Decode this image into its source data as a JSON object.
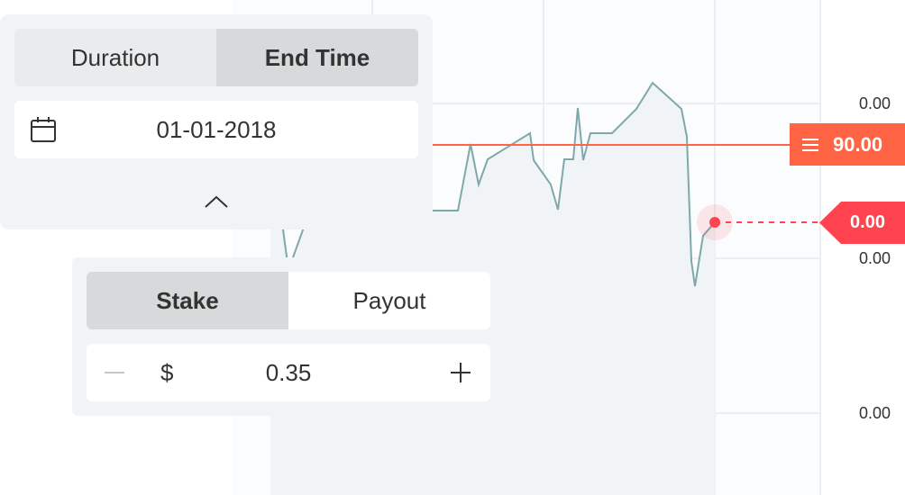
{
  "colors": {
    "barrier": "#ff6444",
    "current": "#ff444f",
    "line": "#7fa8ab",
    "area": "#f3f6f8",
    "grid": "#eceeef"
  },
  "chart": {
    "price_axis_labels": [
      "0.00",
      "0.00",
      "0.00"
    ],
    "barrier_value": "90.00",
    "current_value": "0.00"
  },
  "duration_panel": {
    "tabs": [
      {
        "label": "Duration",
        "active": false
      },
      {
        "label": "End Time",
        "active": true
      }
    ],
    "date_value": "01-01-2018",
    "calendar_icon": "calendar-icon",
    "collapse_icon": "chevron-up-icon"
  },
  "stake_panel": {
    "tabs": [
      {
        "label": "Stake",
        "active": true
      },
      {
        "label": "Payout",
        "active": false
      }
    ],
    "currency_symbol": "$",
    "amount": "0.35",
    "decrement_icon": "minus-icon",
    "increment_icon": "plus-icon"
  }
}
